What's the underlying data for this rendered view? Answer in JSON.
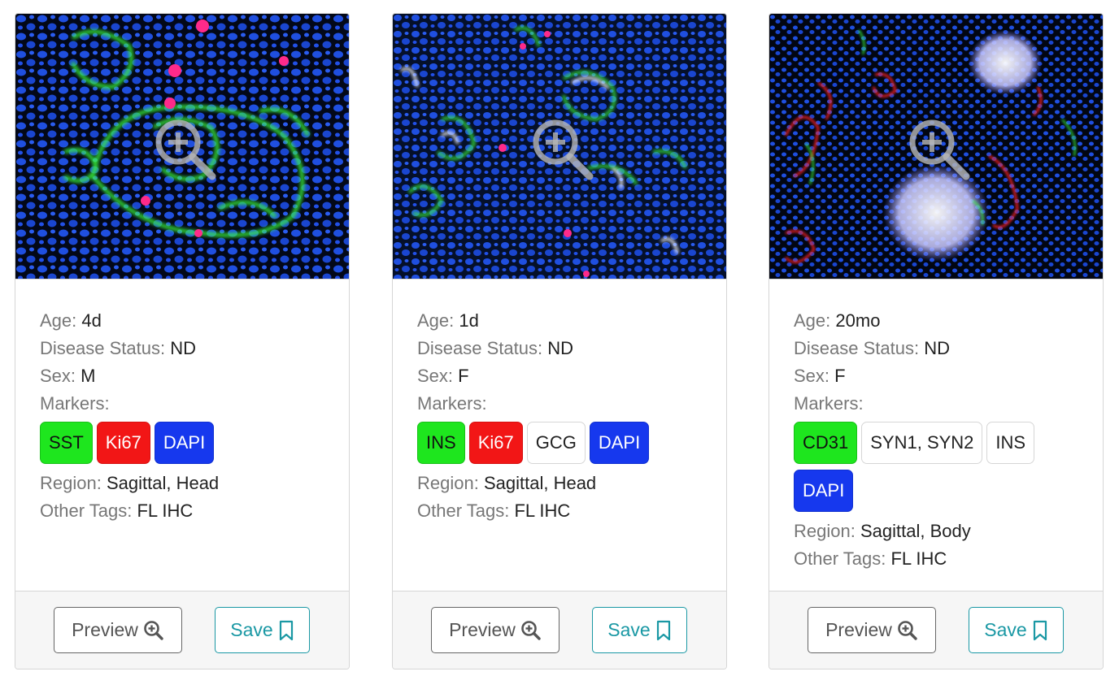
{
  "labels": {
    "age": "Age:",
    "disease_status": "Disease Status:",
    "sex": "Sex:",
    "markers": "Markers:",
    "region": "Region:",
    "other_tags": "Other Tags:"
  },
  "cards": [
    {
      "age": "4d",
      "disease_status": "ND",
      "sex": "M",
      "markers": [
        {
          "label": "SST",
          "color": "#1ee61e"
        },
        {
          "label": "Ki67",
          "color": "#f21616"
        },
        {
          "label": "DAPI",
          "color": "#1638ee"
        }
      ],
      "region": "Sagittal, Head",
      "other_tags": "FL IHC",
      "preview_label": "Preview",
      "save_label": "Save"
    },
    {
      "age": "1d",
      "disease_status": "ND",
      "sex": "F",
      "markers": [
        {
          "label": "INS",
          "color": "#1ee61e"
        },
        {
          "label": "Ki67",
          "color": "#f21616"
        },
        {
          "label": "GCG",
          "color": "#ffffff"
        },
        {
          "label": "DAPI",
          "color": "#1638ee"
        }
      ],
      "region": "Sagittal, Head",
      "other_tags": "FL IHC",
      "preview_label": "Preview",
      "save_label": "Save"
    },
    {
      "age": "20mo",
      "disease_status": "ND",
      "sex": "F",
      "markers": [
        {
          "label": "CD31",
          "color": "#1ee61e"
        },
        {
          "label": "SYN1, SYN2",
          "color": "#ffffff"
        },
        {
          "label": "INS",
          "color": "#ffffff"
        },
        {
          "label": "DAPI",
          "color": "#1638ee"
        }
      ],
      "region": "Sagittal, Body",
      "other_tags": "FL IHC",
      "preview_label": "Preview",
      "save_label": "Save"
    }
  ],
  "icons": {
    "image_overlay": "zoom-in-icon",
    "preview_button": "zoom-in-icon",
    "save_button": "bookmark-icon"
  },
  "colors": {
    "accent": "#1a98a4",
    "label_gray": "#777777",
    "green_marker": "#1ee61e",
    "red_marker": "#f21616",
    "blue_marker": "#1638ee"
  }
}
